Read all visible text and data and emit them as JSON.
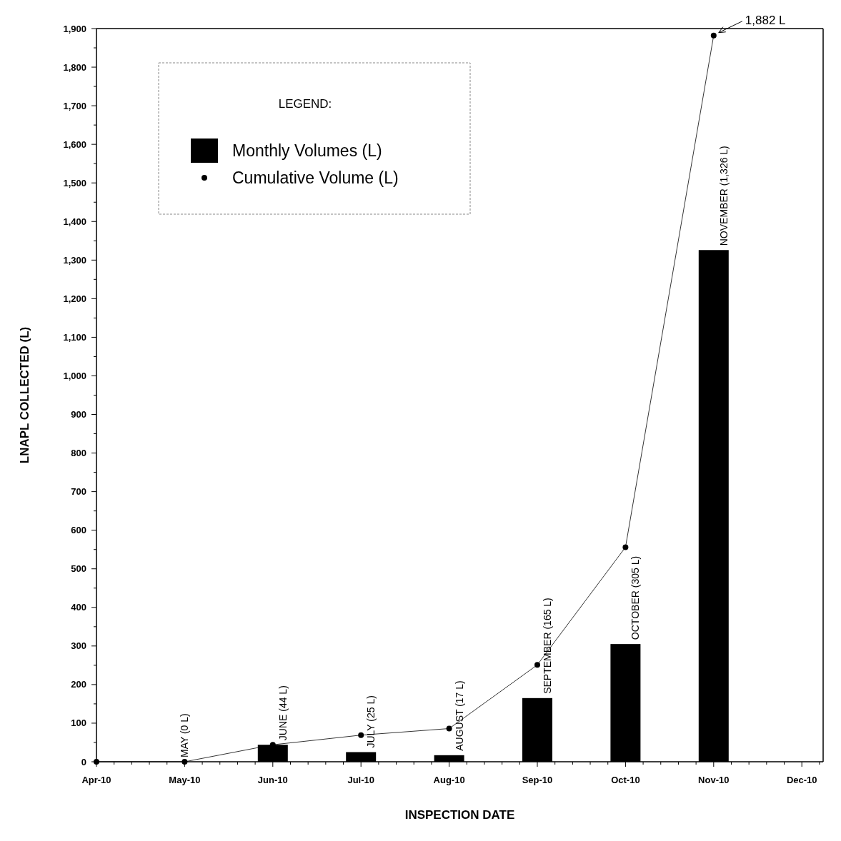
{
  "chart_data": {
    "type": "bar",
    "xlabel": "INSPECTION DATE",
    "ylabel": "LNAPL COLLECTED (L)",
    "legend_title": "LEGEND:",
    "categories": [
      "Apr-10",
      "May-10",
      "Jun-10",
      "Jul-10",
      "Aug-10",
      "Sep-10",
      "Oct-10",
      "Nov-10",
      "Dec-10"
    ],
    "series": [
      {
        "name": "Monthly Volumes (L)",
        "color": "#000000",
        "values": [
          null,
          0,
          44,
          25,
          17,
          165,
          305,
          1326,
          null
        ],
        "value_labels": [
          null,
          "MAY (0 L)",
          "JUNE (44 L)",
          "JULY (25 L)",
          "AUGUST (17 L)",
          "SEPTEMBER (165 L)",
          "OCTOBER (305 L)",
          "NOVEMBER (1,326 L)",
          null
        ]
      },
      {
        "name": "Cumulative Volume (L)",
        "type": "line",
        "color": "#000000",
        "marker": "circle",
        "values": [
          0,
          0,
          44,
          69,
          86,
          251,
          556,
          1882,
          null
        ]
      }
    ],
    "ylim": [
      0,
      1900
    ],
    "yticks": [
      {
        "value": 0,
        "label": "0"
      },
      {
        "value": 100,
        "label": "100"
      },
      {
        "value": 200,
        "label": "200"
      },
      {
        "value": 300,
        "label": "300"
      },
      {
        "value": 400,
        "label": "400"
      },
      {
        "value": 500,
        "label": "500"
      },
      {
        "value": 600,
        "label": "600"
      },
      {
        "value": 700,
        "label": "700"
      },
      {
        "value": 800,
        "label": "800"
      },
      {
        "value": 900,
        "label": "900"
      },
      {
        "value": 1000,
        "label": "1,000"
      },
      {
        "value": 1100,
        "label": "1,100"
      },
      {
        "value": 1200,
        "label": "1,200"
      },
      {
        "value": 1300,
        "label": "1,300"
      },
      {
        "value": 1400,
        "label": "1,400"
      },
      {
        "value": 1500,
        "label": "1,500"
      },
      {
        "value": 1600,
        "label": "1,600"
      },
      {
        "value": 1700,
        "label": "1,700"
      },
      {
        "value": 1800,
        "label": "1,800"
      },
      {
        "value": 1900,
        "label": "1,900"
      }
    ],
    "annotations": [
      {
        "text": "1,882 L",
        "x": "Nov-10",
        "y": 1882
      }
    ],
    "grid": false,
    "legend": "top left"
  }
}
